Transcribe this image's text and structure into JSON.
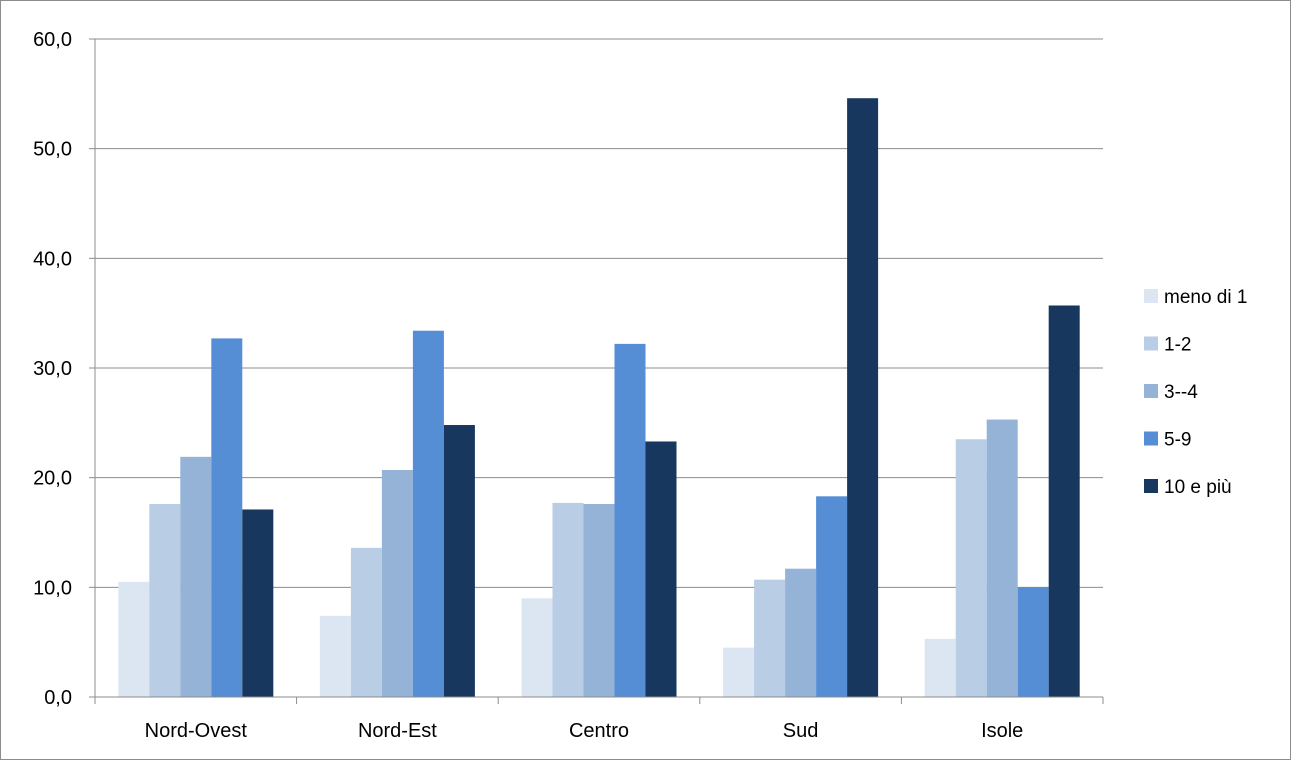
{
  "chart_data": {
    "type": "bar",
    "title": "",
    "xlabel": "",
    "ylabel": "",
    "categories": [
      "Nord-Ovest",
      "Nord-Est",
      "Centro",
      "Sud",
      "Isole"
    ],
    "series": [
      {
        "name": "meno di 1",
        "color": "#dce6f2",
        "values": [
          10.5,
          7.4,
          9.0,
          4.5,
          5.3
        ]
      },
      {
        "name": "1-2",
        "color": "#b9cde5",
        "values": [
          17.6,
          13.6,
          17.7,
          10.7,
          23.5
        ]
      },
      {
        "name": "3--4",
        "color": "#95b3d7",
        "values": [
          21.9,
          20.7,
          17.6,
          11.7,
          25.3
        ]
      },
      {
        "name": "5-9",
        "color": "#558ed5",
        "values": [
          32.7,
          33.4,
          32.2,
          18.3,
          10.0
        ]
      },
      {
        "name": "10 e più",
        "color": "#17375e",
        "values": [
          17.1,
          24.8,
          23.3,
          54.6,
          35.7
        ]
      }
    ],
    "ylim": [
      0,
      60
    ],
    "yticks": [
      "0,0",
      "10,0",
      "20,0",
      "30,0",
      "40,0",
      "50,0",
      "60,0"
    ],
    "grid": true,
    "legend_position": "right"
  }
}
